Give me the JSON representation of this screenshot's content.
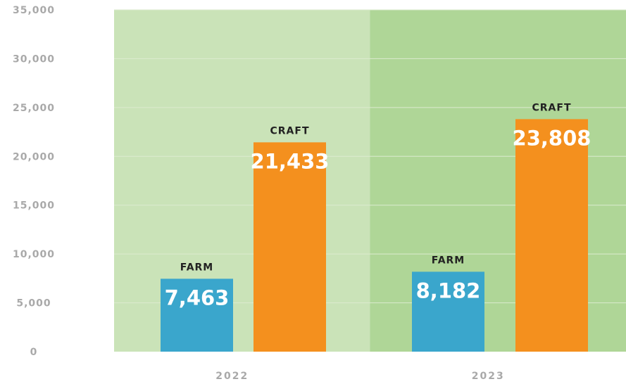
{
  "chart_data": {
    "type": "bar",
    "categories": [
      "2022",
      "2023"
    ],
    "series": [
      {
        "name": "FARM",
        "values": [
          7463,
          8182
        ],
        "value_labels": [
          "7,463",
          "8,182"
        ]
      },
      {
        "name": "CRAFT",
        "values": [
          21433,
          23808
        ],
        "value_labels": [
          "21,433",
          "23,808"
        ]
      }
    ],
    "ylim": [
      0,
      35000
    ],
    "yticks": [
      0,
      5000,
      10000,
      15000,
      20000,
      25000,
      30000,
      35000
    ],
    "ytick_labels": [
      "0",
      "5,000",
      "10,000",
      "15,000",
      "20,000",
      "25,000",
      "30,000",
      "35,000"
    ],
    "title": "",
    "xlabel": "",
    "ylabel": "",
    "grid": true,
    "legend": "none",
    "colors": {
      "FARM": "#3aa6cc",
      "CRAFT": "#f4901e",
      "panel_2022": "#cae3b8",
      "panel_2023": "#afd697",
      "gridline": "#dcebcf",
      "tick_text": "#a9a9a9",
      "series_label_text": "#222222",
      "value_label_text": "#ffffff"
    }
  }
}
